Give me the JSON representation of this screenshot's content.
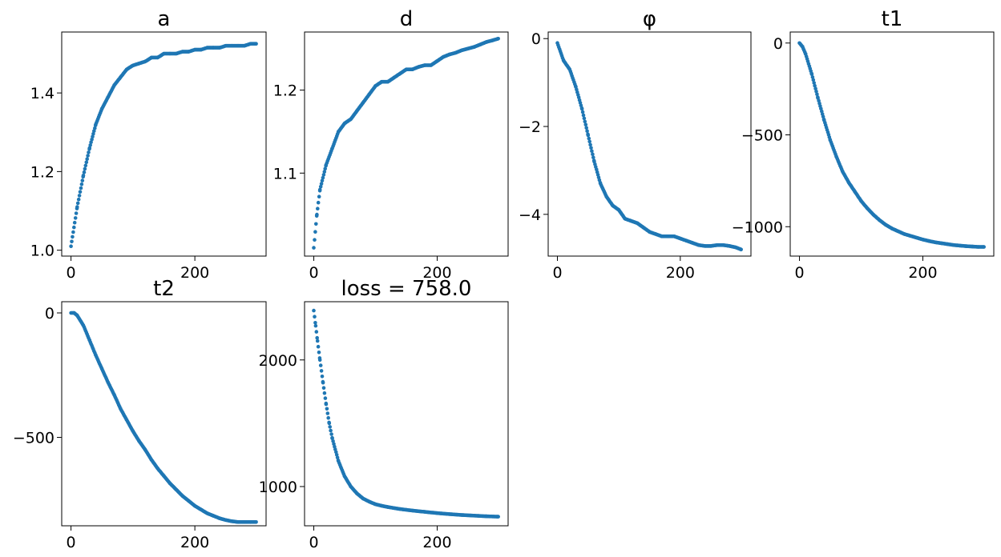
{
  "figure": {
    "marker_color": "#1f77b4",
    "background": "#ffffff"
  },
  "chart_data": [
    {
      "id": "a",
      "type": "scatter",
      "title": "a",
      "x_ticks": [
        0,
        200
      ],
      "y_ticks": [
        1.0,
        1.2,
        1.4
      ],
      "y_tick_labels": [
        "1.0",
        "1.2",
        "1.4"
      ],
      "xlim": [
        -15,
        315
      ],
      "ylim": [
        0.985,
        1.555
      ],
      "series": [
        {
          "x": [
            0,
            10,
            20,
            30,
            40,
            50,
            60,
            70,
            80,
            90,
            100,
            110,
            120,
            130,
            140,
            150,
            160,
            170,
            180,
            190,
            200,
            210,
            220,
            230,
            240,
            250,
            260,
            270,
            280,
            290,
            299
          ],
          "y": [
            1.01,
            1.11,
            1.19,
            1.26,
            1.32,
            1.36,
            1.39,
            1.42,
            1.44,
            1.46,
            1.47,
            1.475,
            1.48,
            1.49,
            1.49,
            1.5,
            1.5,
            1.5,
            1.505,
            1.505,
            1.51,
            1.51,
            1.515,
            1.515,
            1.515,
            1.52,
            1.52,
            1.52,
            1.52,
            1.525,
            1.525
          ]
        }
      ]
    },
    {
      "id": "d",
      "type": "scatter",
      "title": "d",
      "x_ticks": [
        0,
        200
      ],
      "y_ticks": [
        1.1,
        1.2
      ],
      "y_tick_labels": [
        "1.1",
        "1.2"
      ],
      "xlim": [
        -15,
        315
      ],
      "ylim": [
        1.0,
        1.27
      ],
      "series": [
        {
          "x": [
            0,
            5,
            10,
            20,
            30,
            40,
            50,
            60,
            70,
            80,
            90,
            100,
            110,
            120,
            130,
            140,
            150,
            160,
            170,
            180,
            190,
            200,
            210,
            220,
            230,
            240,
            250,
            260,
            270,
            280,
            290,
            299
          ],
          "y": [
            1.01,
            1.05,
            1.08,
            1.11,
            1.13,
            1.15,
            1.16,
            1.165,
            1.175,
            1.185,
            1.195,
            1.205,
            1.21,
            1.21,
            1.215,
            1.22,
            1.225,
            1.225,
            1.228,
            1.23,
            1.23,
            1.235,
            1.24,
            1.243,
            1.245,
            1.248,
            1.25,
            1.252,
            1.255,
            1.258,
            1.26,
            1.262
          ]
        }
      ]
    },
    {
      "id": "phi",
      "type": "scatter",
      "title": "φ",
      "x_ticks": [
        0,
        200
      ],
      "y_ticks": [
        -4,
        -2,
        0
      ],
      "y_tick_labels": [
        "−4",
        "−2",
        "0"
      ],
      "xlim": [
        -15,
        315
      ],
      "ylim": [
        -4.95,
        0.15
      ],
      "series": [
        {
          "x": [
            0,
            10,
            20,
            30,
            40,
            50,
            60,
            70,
            80,
            90,
            100,
            110,
            120,
            130,
            140,
            150,
            160,
            170,
            180,
            190,
            200,
            210,
            220,
            230,
            240,
            250,
            260,
            270,
            280,
            290,
            299
          ],
          "y": [
            -0.1,
            -0.5,
            -0.7,
            -1.1,
            -1.6,
            -2.2,
            -2.8,
            -3.3,
            -3.6,
            -3.8,
            -3.9,
            -4.1,
            -4.15,
            -4.2,
            -4.3,
            -4.4,
            -4.45,
            -4.5,
            -4.5,
            -4.5,
            -4.55,
            -4.6,
            -4.65,
            -4.7,
            -4.72,
            -4.72,
            -4.7,
            -4.7,
            -4.72,
            -4.75,
            -4.8
          ]
        }
      ]
    },
    {
      "id": "t1",
      "type": "scatter",
      "title": "t1",
      "x_ticks": [
        0,
        200
      ],
      "y_ticks": [
        -1000,
        -500,
        0
      ],
      "y_tick_labels": [
        "−1000",
        "−500",
        "0"
      ],
      "xlim": [
        -15,
        315
      ],
      "ylim": [
        -1160,
        60
      ],
      "series": [
        {
          "x": [
            0,
            5,
            10,
            20,
            30,
            40,
            50,
            60,
            70,
            80,
            90,
            100,
            110,
            120,
            130,
            140,
            150,
            160,
            170,
            180,
            190,
            200,
            210,
            220,
            230,
            240,
            250,
            260,
            270,
            280,
            290,
            299
          ],
          "y": [
            0,
            -20,
            -60,
            -170,
            -300,
            -420,
            -530,
            -620,
            -700,
            -760,
            -810,
            -860,
            -900,
            -935,
            -965,
            -990,
            -1010,
            -1025,
            -1040,
            -1050,
            -1060,
            -1070,
            -1078,
            -1085,
            -1090,
            -1095,
            -1100,
            -1103,
            -1106,
            -1108,
            -1110,
            -1110
          ]
        }
      ]
    },
    {
      "id": "t2",
      "type": "scatter",
      "title": "t2",
      "x_ticks": [
        0,
        200
      ],
      "y_ticks": [
        -500,
        0
      ],
      "y_tick_labels": [
        "−500",
        "0"
      ],
      "xlim": [
        -15,
        315
      ],
      "ylim": [
        -855,
        45
      ],
      "series": [
        {
          "x": [
            0,
            5,
            10,
            20,
            30,
            40,
            50,
            60,
            70,
            80,
            90,
            100,
            110,
            120,
            130,
            140,
            150,
            160,
            170,
            180,
            190,
            200,
            210,
            220,
            230,
            240,
            250,
            260,
            270,
            280,
            290,
            299
          ],
          "y": [
            0,
            0,
            -10,
            -50,
            -110,
            -170,
            -225,
            -280,
            -330,
            -385,
            -430,
            -475,
            -515,
            -550,
            -590,
            -625,
            -655,
            -685,
            -710,
            -735,
            -755,
            -775,
            -790,
            -805,
            -815,
            -825,
            -832,
            -837,
            -840,
            -840,
            -840,
            -840
          ]
        }
      ]
    },
    {
      "id": "loss",
      "type": "scatter",
      "title": "loss = 758.0",
      "x_ticks": [
        0,
        200
      ],
      "y_ticks": [
        1000,
        2000
      ],
      "y_tick_labels": [
        "1000",
        "2000"
      ],
      "xlim": [
        -15,
        315
      ],
      "ylim": [
        690,
        2460
      ],
      "series": [
        {
          "x": [
            0,
            3,
            6,
            10,
            15,
            20,
            25,
            30,
            40,
            50,
            60,
            70,
            80,
            90,
            100,
            110,
            120,
            140,
            160,
            180,
            200,
            220,
            240,
            260,
            280,
            299
          ],
          "y": [
            2390,
            2270,
            2150,
            2000,
            1820,
            1650,
            1500,
            1380,
            1200,
            1080,
            1000,
            945,
            905,
            880,
            860,
            848,
            838,
            822,
            810,
            800,
            790,
            782,
            775,
            770,
            765,
            762
          ]
        }
      ]
    }
  ]
}
